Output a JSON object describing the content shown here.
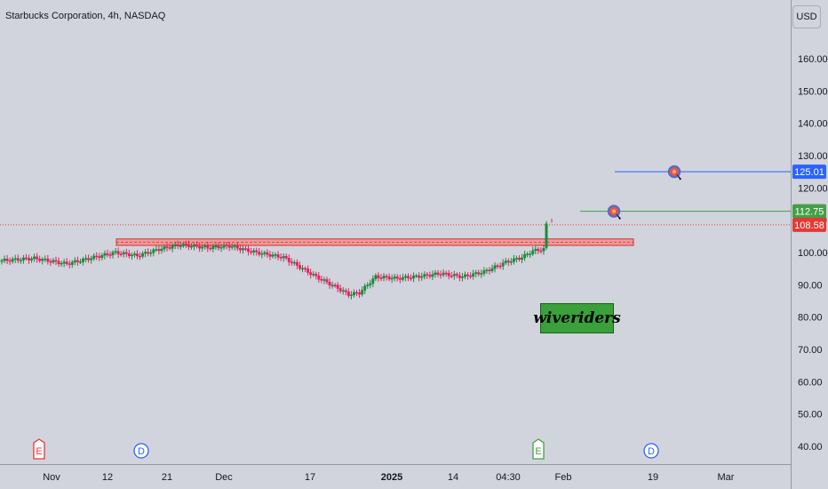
{
  "header": {
    "title": "Starbucks Corporation, 4h, NASDAQ",
    "currency_label": "USD"
  },
  "watermark": {
    "text": "wiveriders"
  },
  "chart_data": {
    "type": "candlestick",
    "title": "Starbucks Corporation, 4h, NASDAQ",
    "ylim": [
      35,
      172
    ],
    "y_ticks": [
      40,
      50,
      60,
      70,
      80,
      90,
      100,
      110,
      120,
      130,
      140,
      150,
      160
    ],
    "y_tick_labels": [
      "40.00",
      "50.00",
      "60.00",
      "70.00",
      "80.00",
      "90.00",
      "100.00",
      "110.00",
      "120.00",
      "130.00",
      "140.00",
      "150.00",
      "160.00"
    ],
    "x_tick_labels": [
      "Nov",
      "12",
      "21",
      "Dec",
      "17",
      "2025",
      "14",
      "04:30",
      "Feb",
      "19",
      "Mar"
    ],
    "price_path": [
      {
        "i": 0,
        "c": 97.5
      },
      {
        "i": 12,
        "c": 98.2
      },
      {
        "i": 24,
        "c": 96.5
      },
      {
        "i": 34,
        "c": 98.5
      },
      {
        "i": 42,
        "c": 100.0
      },
      {
        "i": 50,
        "c": 99.0
      },
      {
        "i": 58,
        "c": 101.0
      },
      {
        "i": 66,
        "c": 102.4
      },
      {
        "i": 76,
        "c": 101.5
      },
      {
        "i": 84,
        "c": 102.0
      },
      {
        "i": 94,
        "c": 100.0
      },
      {
        "i": 104,
        "c": 98.5
      },
      {
        "i": 108,
        "c": 96.5
      },
      {
        "i": 116,
        "c": 92.5
      },
      {
        "i": 124,
        "c": 89.0
      },
      {
        "i": 128,
        "c": 87.0
      },
      {
        "i": 132,
        "c": 87.5
      },
      {
        "i": 138,
        "c": 92.5
      },
      {
        "i": 146,
        "c": 92.0
      },
      {
        "i": 156,
        "c": 92.8
      },
      {
        "i": 162,
        "c": 93.5
      },
      {
        "i": 170,
        "c": 92.5
      },
      {
        "i": 178,
        "c": 94.0
      },
      {
        "i": 186,
        "c": 97.0
      },
      {
        "i": 192,
        "c": 98.5
      },
      {
        "i": 196,
        "c": 100.5
      },
      {
        "i": 200,
        "c": 101.0
      },
      {
        "i": 201,
        "c": 108.6
      }
    ],
    "last_price": 108.58,
    "last_price_label": "108.58",
    "resistance_zone": {
      "from": 102.2,
      "to": 104.2
    },
    "targets": [
      {
        "label": "125.01",
        "value": 125.01,
        "color": "#2962ff"
      },
      {
        "label": "112.75",
        "value": 112.75,
        "color": "#43a047"
      }
    ],
    "events": [
      {
        "letter": "E",
        "color": "#e53935"
      },
      {
        "letter": "D",
        "color": "#2962ff"
      },
      {
        "letter": "E",
        "color": "#43a047"
      },
      {
        "letter": "D",
        "color": "#2962ff"
      }
    ],
    "colors": {
      "up": "#26a69a",
      "down": "#ef5350",
      "up_body": "#1b8a3a",
      "down_body": "#e91e63"
    }
  }
}
